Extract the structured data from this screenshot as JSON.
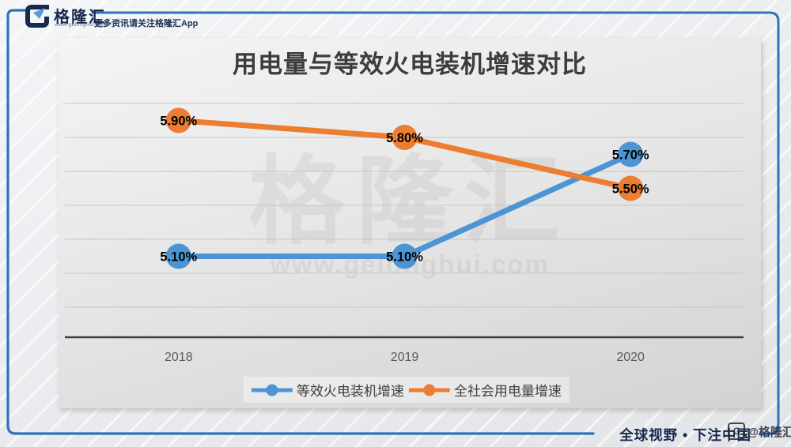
{
  "header": {
    "brand": "格隆汇",
    "brand_site": "www.gelonghui.com",
    "tagline": "更多资讯请关注格隆汇App"
  },
  "chart_data": {
    "type": "line",
    "title": "用电量与等效火电装机增速对比",
    "categories": [
      "2018",
      "2019",
      "2020"
    ],
    "series": [
      {
        "name": "等效火电装机增速",
        "color": "#4D94D4",
        "values": [
          5.1,
          5.1,
          5.7
        ],
        "point_labels": [
          "5.10%",
          "5.10%",
          "5.70%"
        ]
      },
      {
        "name": "全社会用电量增速",
        "color": "#ED7D31",
        "values": [
          5.9,
          5.8,
          5.5
        ],
        "point_labels": [
          "5.90%",
          "5.80%",
          "5.50%"
        ]
      }
    ],
    "y_axis": {
      "labels_visible": false,
      "top_gridline_value": 6.0,
      "gridline_step": 0.2,
      "num_gridlines": 7
    },
    "grid": true,
    "legend_position": "bottom",
    "data_label_color": "#000000",
    "tick_label_color": "#595959"
  },
  "watermark": {
    "text": "格隆汇",
    "url": "www.gelonghui.com"
  },
  "footer": {
    "slogan": "全球视野 • 下注中国",
    "credit": "@格隆汇",
    "credit_icon": "G"
  },
  "theme": {
    "frame_blue": "#2F72BD",
    "brand_navy": "#16294E",
    "axis_line_color": "#3F3F3F",
    "gridline_color": "#C6C6C6"
  }
}
